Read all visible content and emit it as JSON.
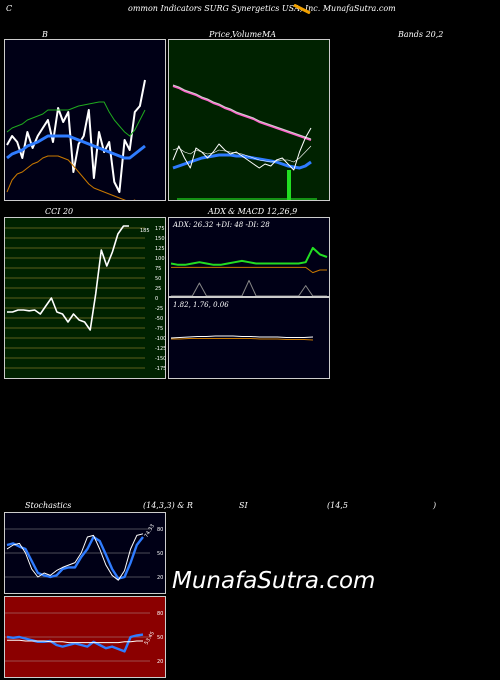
{
  "header": {
    "left": "C",
    "title": "ommon Indicators SURG Synergetics USA, Inc. MunafaSutra.com"
  },
  "watermark": "MunafaSutra.com",
  "labels": {
    "b": "B",
    "price_a": "Price, ",
    "price_b": "Volume",
    "price_c": "MA",
    "bands": "Bands 20,2",
    "cci": "CCI 20",
    "adx_a": "ADX",
    "adx_b": "& MACD 12,26,9",
    "stoch_a": "Stochastics",
    "stoch_b": "(14,3,3) & R",
    "stoch_c": "SI",
    "stoch_d": "(14,5",
    "stoch_e": ")"
  },
  "chart_data": [
    {
      "type": "line",
      "panel": "bollinger",
      "series": [
        {
          "color": "#ffffff",
          "values": [
            105,
            96,
            102,
            118,
            92,
            108,
            96,
            88,
            80,
            102,
            68,
            82,
            72,
            132,
            104,
            96,
            70,
            138,
            92,
            112,
            102,
            142,
            152,
            100,
            110,
            72,
            66,
            40
          ]
        },
        {
          "color": "#2f7cff",
          "values": [
            118,
            114,
            112,
            110,
            106,
            104,
            102,
            99,
            96,
            96,
            96,
            96,
            96,
            98,
            100,
            102,
            104,
            106,
            108,
            110,
            112,
            114,
            116,
            118,
            118,
            114,
            110,
            106
          ]
        },
        {
          "color": "#1faa1f",
          "values": [
            92,
            88,
            86,
            84,
            80,
            78,
            76,
            74,
            70,
            70,
            70,
            70,
            70,
            68,
            66,
            65,
            64,
            63,
            62,
            62,
            72,
            80,
            86,
            92,
            96,
            90,
            80,
            70
          ]
        },
        {
          "color": "#c87800",
          "values": [
            152,
            140,
            134,
            132,
            128,
            124,
            122,
            118,
            116,
            116,
            116,
            118,
            120,
            126,
            132,
            138,
            144,
            148,
            150,
            152,
            154,
            156,
            158,
            160,
            162,
            160,
            168,
            182
          ]
        }
      ]
    },
    {
      "type": "line",
      "panel": "price-volume-ma",
      "series": [
        {
          "color": "#ff66cc",
          "values": [
            46,
            48,
            51,
            53,
            55,
            58,
            60,
            63,
            65,
            68,
            70,
            73,
            75,
            77,
            79,
            82,
            84,
            86,
            88,
            90,
            92,
            94,
            96,
            98,
            100
          ]
        },
        {
          "color": "#d0d0d0",
          "values": [
            45,
            47,
            50,
            52,
            54,
            57,
            59,
            62,
            64,
            67,
            69,
            72,
            74,
            76,
            78,
            81,
            83,
            85,
            87,
            89,
            91,
            93,
            95,
            97,
            99
          ]
        },
        {
          "color": "#2f7cff",
          "values": [
            128,
            126,
            124,
            122,
            120,
            118,
            117,
            116,
            115,
            115,
            115,
            116,
            116,
            117,
            118,
            119,
            120,
            121,
            122,
            124,
            126,
            127,
            128,
            126,
            122
          ]
        },
        {
          "color": "#ffffff",
          "values": [
            120,
            106,
            118,
            128,
            108,
            112,
            118,
            112,
            104,
            110,
            114,
            112,
            116,
            120,
            124,
            128,
            124,
            126,
            120,
            118,
            124,
            130,
            112,
            98,
            88
          ]
        },
        {
          "color": "#ffffff",
          "values": [
            110,
            108,
            112,
            114,
            110,
            112,
            114,
            113,
            110,
            111,
            112,
            113,
            114,
            116,
            118,
            120,
            121,
            122,
            121,
            120,
            120,
            122,
            118,
            112,
            106
          ]
        }
      ],
      "volume": {
        "color": "#22dd22",
        "bar": 118,
        "value": 30
      }
    },
    {
      "type": "line",
      "panel": "cci",
      "ticks": [
        "175",
        "150",
        "125",
        "100",
        "75",
        "50",
        "25",
        "0",
        "-25",
        "-50",
        "-75",
        "-100",
        "-125",
        "-150",
        "-175"
      ],
      "last_label": "185",
      "series": [
        {
          "color": "#ffffff",
          "values": [
            -35,
            -35,
            -30,
            -30,
            -32,
            -30,
            -40,
            -20,
            0,
            -35,
            -40,
            -60,
            -40,
            -55,
            -60,
            -80,
            10,
            120,
            80,
            115,
            160,
            180,
            180
          ]
        }
      ]
    },
    {
      "type": "line",
      "panel": "adx",
      "title": "ADX: 26.32  +DI: 48  -DI: 28",
      "series": [
        {
          "color": "#22dd22",
          "values": [
            25,
            24,
            24,
            25,
            26,
            25,
            24,
            24,
            25,
            26,
            27,
            26,
            25,
            25,
            25,
            25,
            25,
            25,
            25,
            26,
            37,
            32,
            30
          ]
        },
        {
          "color": "#c87800",
          "values": [
            22,
            22,
            22,
            22,
            22,
            22,
            22,
            22,
            22,
            22,
            22,
            22,
            22,
            22,
            22,
            22,
            22,
            22,
            22,
            22,
            18,
            20,
            20
          ]
        },
        {
          "color": "#888888",
          "values": [
            0,
            0,
            0,
            0,
            10,
            0,
            0,
            0,
            0,
            0,
            0,
            12,
            0,
            0,
            0,
            0,
            0,
            0,
            0,
            8,
            0,
            0,
            0
          ]
        }
      ]
    },
    {
      "type": "line",
      "panel": "macd",
      "title": "1.82,  1.76,  0.06",
      "series": [
        {
          "color": "#ffffff",
          "values": [
            1.8,
            1.81,
            1.82,
            1.83,
            1.83,
            1.84,
            1.84,
            1.84,
            1.83,
            1.83,
            1.82,
            1.82,
            1.82,
            1.81,
            1.81,
            1.81,
            1.82
          ]
        },
        {
          "color": "#c87800",
          "values": [
            1.78,
            1.78,
            1.79,
            1.79,
            1.79,
            1.79,
            1.79,
            1.79,
            1.79,
            1.79,
            1.78,
            1.78,
            1.78,
            1.77,
            1.77,
            1.77,
            1.76
          ]
        }
      ]
    },
    {
      "type": "line",
      "panel": "stochastics",
      "ticks": [
        "80",
        "50",
        "20"
      ],
      "last_label": "74.33",
      "series": [
        {
          "color": "#2f7cff",
          "values": [
            60,
            62,
            58,
            55,
            40,
            25,
            22,
            20,
            22,
            30,
            32,
            32,
            45,
            55,
            70,
            65,
            48,
            30,
            18,
            20,
            38,
            60,
            70
          ]
        },
        {
          "color": "#ffffff",
          "values": [
            55,
            60,
            62,
            50,
            30,
            20,
            25,
            22,
            28,
            32,
            35,
            38,
            50,
            70,
            72,
            55,
            35,
            22,
            16,
            28,
            55,
            72,
            74
          ]
        }
      ]
    },
    {
      "type": "line",
      "panel": "rsi",
      "ticks": [
        "80",
        "50",
        "20"
      ],
      "last_label": "53.45",
      "series": [
        {
          "color": "#2f7cff",
          "values": [
            50,
            49,
            50,
            48,
            46,
            44,
            44,
            45,
            40,
            38,
            40,
            42,
            40,
            38,
            44,
            40,
            36,
            38,
            35,
            32,
            50,
            52,
            53
          ]
        },
        {
          "color": "#ffffff",
          "values": [
            46,
            46,
            46,
            45,
            45,
            45,
            45,
            44,
            44,
            44,
            43,
            43,
            43,
            43,
            43,
            43,
            43,
            43,
            43,
            44,
            44,
            45,
            45
          ]
        }
      ]
    }
  ]
}
